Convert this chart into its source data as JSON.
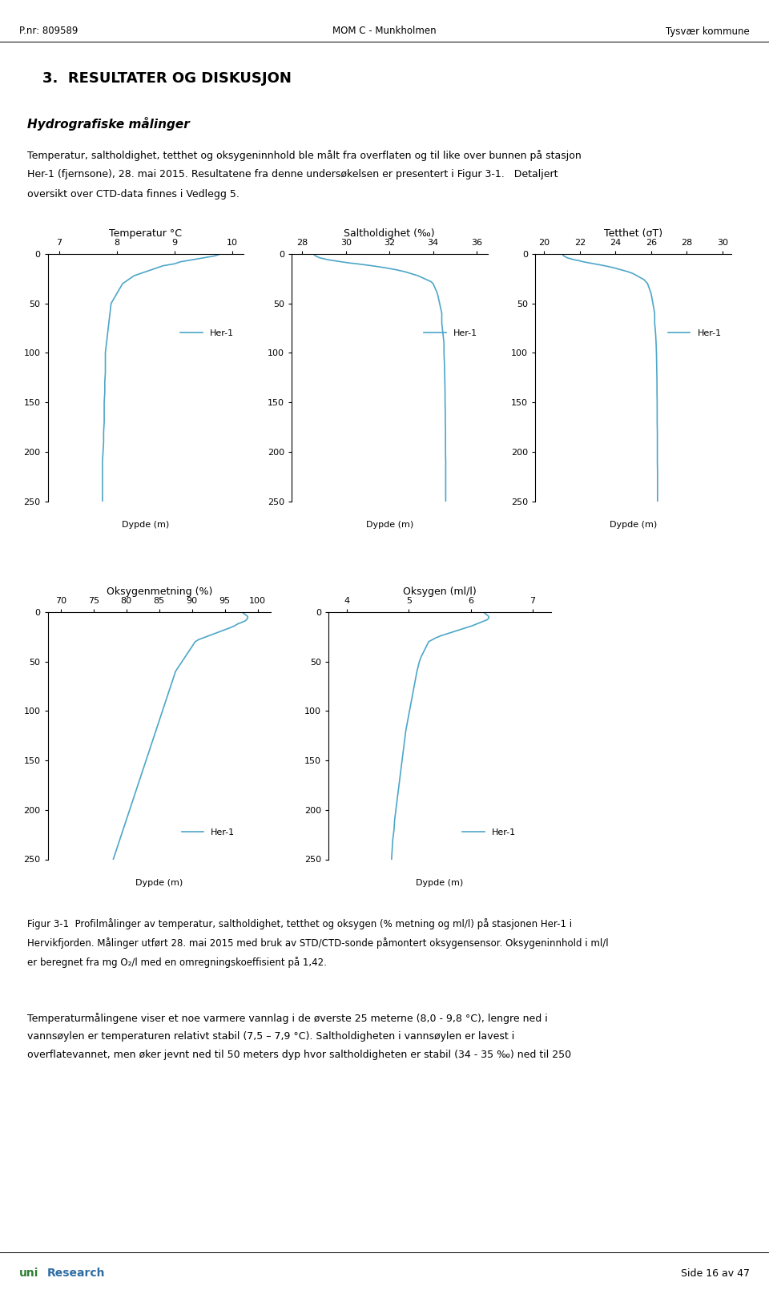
{
  "header_left": "P.nr: 809589",
  "header_center": "MOM C - Munkholmen",
  "header_right": "Tysvær kommune",
  "section_title": "3.  RESULTATER OG DISKUSJON",
  "subsection_title": "Hydrografiske målinger",
  "paragraph1_line1": "Temperatur, saltholdighet, tetthet og oksygeninnhold ble målt fra overflaten og til like over bunnen på stasjon",
  "paragraph1_line2": "Her-1 (fjernsone), 28. mai 2015. Resultatene fra denne undersøkelsen er presentert i Figur 3-1.   Detaljert",
  "paragraph1_line3": "oversikt over CTD-data finnes i Vedlegg 5.",
  "fig_caption_line1": "Figur 3-1  Profilmålinger av temperatur, saltholdighet, tetthet og oksygen (% metning og ml/l) på stasjonen Her-1 i",
  "fig_caption_line2": "Hervikfjorden. Målinger utført 28. mai 2015 med bruk av STD/CTD-sonde påmontert oksygensensor. Oksygeninnhold i ml/l",
  "fig_caption_line3": "er beregnet fra mg O₂/l med en omregningskoeffisient på 1,42.",
  "paragraph2_line1": "Temperaturmålingene viser et noe varmere vannlag i de øverste 25 meterne (8,0 - 9,8 °C), lengre ned i",
  "paragraph2_line2": "vannsøylen er temperaturen relativt stabil (7,5 – 7,9 °C). Saltholdigheten i vannsøylen er lavest i",
  "paragraph2_line3": "overflatevannet, men øker jevnt ned til 50 meters dyp hvor saltholdigheten er stabil (34 - 35 ‰) ned til 250",
  "footer_left": "uni Research",
  "footer_right": "Side 16 av 47",
  "line_color": "#4da6c8",
  "legend_label": "Her-1",
  "temp": {
    "title": "Temperatur °C",
    "xticks": [
      7,
      8,
      9,
      10
    ],
    "xlim": [
      6.8,
      10.2
    ],
    "depth": [
      0,
      1,
      2,
      3,
      4,
      5,
      6,
      7,
      8,
      9,
      10,
      12,
      14,
      16,
      18,
      20,
      22,
      24,
      26,
      28,
      30,
      35,
      40,
      45,
      50,
      60,
      70,
      80,
      90,
      100,
      110,
      120,
      130,
      140,
      150,
      160,
      170,
      180,
      190,
      200,
      210,
      220,
      230,
      240,
      250
    ],
    "values": [
      9.8,
      9.75,
      9.7,
      9.6,
      9.5,
      9.4,
      9.3,
      9.2,
      9.1,
      9.05,
      9.0,
      8.8,
      8.7,
      8.6,
      8.5,
      8.4,
      8.3,
      8.25,
      8.2,
      8.15,
      8.1,
      8.05,
      8.0,
      7.95,
      7.9,
      7.88,
      7.86,
      7.84,
      7.82,
      7.8,
      7.8,
      7.8,
      7.79,
      7.79,
      7.78,
      7.78,
      7.78,
      7.77,
      7.77,
      7.76,
      7.75,
      7.75,
      7.75,
      7.75,
      7.75
    ]
  },
  "salt": {
    "title": "Saltholdighet (‰)",
    "xticks": [
      28,
      30,
      32,
      34,
      36
    ],
    "xlim": [
      27.5,
      36.5
    ],
    "depth": [
      0,
      1,
      2,
      3,
      4,
      5,
      6,
      7,
      8,
      9,
      10,
      12,
      14,
      16,
      18,
      20,
      22,
      24,
      26,
      28,
      30,
      35,
      40,
      45,
      50,
      60,
      70,
      80,
      90,
      100,
      110,
      120,
      130,
      140,
      150,
      160,
      170,
      180,
      190,
      200,
      210,
      220,
      230,
      240,
      250
    ],
    "values": [
      28.5,
      28.55,
      28.6,
      28.7,
      28.8,
      29.0,
      29.2,
      29.5,
      29.8,
      30.1,
      30.5,
      31.2,
      31.8,
      32.3,
      32.7,
      33.0,
      33.3,
      33.5,
      33.7,
      33.9,
      34.0,
      34.1,
      34.2,
      34.25,
      34.3,
      34.4,
      34.4,
      34.45,
      34.5,
      34.5,
      34.52,
      34.53,
      34.54,
      34.55,
      34.55,
      34.56,
      34.56,
      34.57,
      34.57,
      34.57,
      34.58,
      34.58,
      34.58,
      34.58,
      34.58
    ]
  },
  "density": {
    "title": "Tetthet (σT)",
    "xticks": [
      20,
      22,
      24,
      26,
      28,
      30
    ],
    "xlim": [
      19.5,
      30.5
    ],
    "depth": [
      0,
      1,
      2,
      3,
      4,
      5,
      6,
      7,
      8,
      9,
      10,
      12,
      14,
      16,
      18,
      20,
      22,
      24,
      26,
      28,
      30,
      35,
      40,
      45,
      50,
      60,
      70,
      80,
      90,
      100,
      110,
      120,
      130,
      140,
      150,
      160,
      170,
      180,
      190,
      200,
      210,
      220,
      230,
      240,
      250
    ],
    "values": [
      21.0,
      21.05,
      21.1,
      21.2,
      21.3,
      21.5,
      21.7,
      22.0,
      22.2,
      22.5,
      22.8,
      23.4,
      23.9,
      24.3,
      24.7,
      25.0,
      25.2,
      25.4,
      25.6,
      25.7,
      25.8,
      25.9,
      26.0,
      26.05,
      26.1,
      26.2,
      26.2,
      26.25,
      26.28,
      26.3,
      26.31,
      26.32,
      26.33,
      26.33,
      26.34,
      26.34,
      26.34,
      26.35,
      26.35,
      26.35,
      26.35,
      26.36,
      26.36,
      26.36,
      26.36
    ]
  },
  "oxy_pct": {
    "title": "Oksygenmetning (%)",
    "xticks": [
      70,
      75,
      80,
      85,
      90,
      95,
      100
    ],
    "xlim": [
      68,
      102
    ],
    "depth": [
      0,
      1,
      2,
      3,
      4,
      5,
      6,
      7,
      8,
      9,
      10,
      12,
      14,
      16,
      18,
      20,
      22,
      24,
      26,
      28,
      30,
      35,
      40,
      45,
      50,
      60,
      70,
      80,
      90,
      100,
      110,
      120,
      130,
      140,
      150,
      160,
      170,
      180,
      190,
      200,
      210,
      220,
      230,
      240,
      250
    ],
    "values": [
      97.5,
      97.8,
      98.0,
      98.2,
      98.4,
      98.5,
      98.5,
      98.4,
      98.3,
      98.1,
      97.8,
      97.0,
      96.5,
      95.8,
      95.0,
      94.2,
      93.4,
      92.6,
      91.8,
      91.0,
      90.5,
      90.0,
      89.5,
      89.0,
      88.5,
      87.5,
      87.0,
      86.5,
      86.0,
      85.5,
      85.0,
      84.5,
      84.0,
      83.5,
      83.0,
      82.5,
      82.0,
      81.5,
      81.0,
      80.5,
      80.0,
      79.5,
      79.0,
      78.5,
      78.0
    ]
  },
  "oxy_ml": {
    "title": "Oksygen (ml/l)",
    "xticks": [
      4,
      5,
      6,
      7
    ],
    "xlim": [
      3.7,
      7.3
    ],
    "depth": [
      0,
      1,
      2,
      3,
      4,
      5,
      6,
      7,
      8,
      9,
      10,
      12,
      14,
      16,
      18,
      20,
      22,
      24,
      26,
      28,
      30,
      35,
      40,
      45,
      50,
      60,
      70,
      80,
      90,
      100,
      110,
      120,
      130,
      140,
      150,
      160,
      170,
      180,
      190,
      200,
      210,
      220,
      230,
      240,
      250
    ],
    "values": [
      6.2,
      6.22,
      6.24,
      6.26,
      6.28,
      6.29,
      6.29,
      6.28,
      6.26,
      6.22,
      6.18,
      6.1,
      6.02,
      5.92,
      5.82,
      5.72,
      5.62,
      5.52,
      5.44,
      5.38,
      5.32,
      5.28,
      5.24,
      5.2,
      5.17,
      5.13,
      5.1,
      5.07,
      5.04,
      5.01,
      4.98,
      4.95,
      4.93,
      4.91,
      4.89,
      4.87,
      4.85,
      4.83,
      4.81,
      4.79,
      4.77,
      4.76,
      4.74,
      4.73,
      4.72
    ]
  },
  "depth_lim": [
    0,
    250
  ],
  "depth_ticks": [
    0,
    50,
    100,
    150,
    200,
    250
  ],
  "depth_label": "Dypde (m)"
}
